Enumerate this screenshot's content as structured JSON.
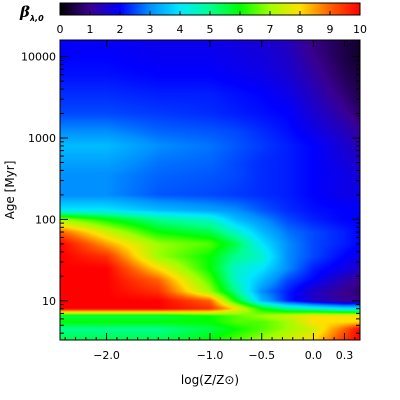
{
  "chart_data": {
    "type": "heatmap",
    "colorbar": {
      "label_symbol": "β",
      "label_subscript": "λ,0",
      "min": 0,
      "max": 10,
      "ticks": [
        "0",
        "1",
        "2",
        "3",
        "4",
        "5",
        "6",
        "7",
        "8",
        "9",
        "10"
      ]
    },
    "x_axis": {
      "label": "log(Z/Z⊙)",
      "min": -2.45,
      "max": 0.45,
      "ticks": [
        {
          "value": -2.0,
          "label": "−2.0"
        },
        {
          "value": -1.0,
          "label": "−1.0"
        },
        {
          "value": -0.5,
          "label": "−0.5"
        },
        {
          "value": 0.0,
          "label": "0.0"
        },
        {
          "value": 0.3,
          "label": "0.3"
        }
      ]
    },
    "y_axis": {
      "label": "Age [Myr]",
      "scale": "log",
      "min": 3.3,
      "max": 16000,
      "ticks": [
        {
          "value": 10,
          "label": "10"
        },
        {
          "value": 100,
          "label": "100"
        },
        {
          "value": 1000,
          "label": "1000"
        },
        {
          "value": 10000,
          "label": "10000"
        }
      ]
    },
    "value_grid": {
      "x": [
        -2.45,
        -2.0,
        -1.5,
        -1.0,
        -0.75,
        -0.5,
        -0.25,
        0.0,
        0.3,
        0.45
      ],
      "y": [
        3.3,
        4.5,
        5.5,
        6.5,
        8,
        10,
        13,
        18,
        25,
        35,
        50,
        70,
        100,
        130,
        200,
        350,
        500,
        800,
        1200,
        2000,
        3500,
        6000,
        10000,
        16000
      ],
      "z": [
        [
          5.5,
          5.5,
          5.5,
          6.0,
          6.5,
          7.0,
          7.5,
          8.0,
          9.5,
          10.0
        ],
        [
          5.0,
          5.0,
          5.0,
          5.5,
          6.0,
          6.5,
          7.0,
          7.5,
          9.0,
          10.0
        ],
        [
          6.0,
          6.0,
          6.0,
          6.0,
          6.5,
          6.5,
          7.0,
          8.0,
          8.0,
          8.0
        ],
        [
          5.5,
          5.5,
          5.5,
          6.0,
          6.5,
          7.0,
          7.5,
          8.0,
          8.0,
          8.0
        ],
        [
          10.0,
          10.0,
          10.0,
          9.5,
          8.0,
          6.0,
          5.0,
          4.5,
          4.0,
          4.0
        ],
        [
          10.0,
          10.0,
          10.0,
          9.0,
          6.0,
          3.5,
          2.2,
          1.5,
          1.0,
          1.0
        ],
        [
          10.0,
          10.0,
          9.5,
          7.0,
          5.0,
          3.0,
          2.2,
          1.5,
          1.0,
          0.8
        ],
        [
          10.0,
          10.0,
          9.0,
          6.5,
          4.5,
          3.5,
          2.5,
          2.0,
          1.3,
          1.0
        ],
        [
          10.0,
          10.0,
          8.0,
          6.0,
          4.5,
          4.0,
          3.0,
          2.2,
          1.8,
          1.5
        ],
        [
          10.0,
          9.5,
          7.0,
          6.0,
          5.0,
          4.5,
          3.0,
          2.5,
          2.0,
          1.8
        ],
        [
          10.0,
          8.5,
          7.0,
          6.5,
          5.5,
          4.0,
          3.0,
          2.5,
          2.2,
          2.0
        ],
        [
          9.0,
          7.5,
          6.0,
          5.5,
          4.5,
          3.5,
          2.8,
          2.5,
          2.2,
          2.0
        ],
        [
          7.0,
          6.0,
          5.0,
          4.5,
          3.5,
          3.0,
          2.5,
          2.2,
          2.0,
          2.0
        ],
        [
          4.0,
          4.0,
          3.5,
          3.2,
          3.0,
          2.6,
          2.3,
          2.1,
          2.0,
          2.0
        ],
        [
          3.0,
          3.0,
          2.6,
          2.5,
          2.4,
          2.3,
          2.2,
          2.0,
          1.8,
          1.8
        ],
        [
          3.0,
          3.0,
          2.7,
          2.6,
          2.5,
          2.3,
          2.2,
          2.0,
          1.8,
          1.6
        ],
        [
          3.2,
          3.2,
          2.8,
          2.7,
          2.5,
          2.3,
          2.2,
          2.0,
          1.7,
          1.5
        ],
        [
          3.5,
          3.5,
          3.0,
          2.8,
          2.6,
          2.4,
          2.2,
          2.0,
          1.6,
          1.3
        ],
        [
          3.0,
          3.0,
          2.7,
          2.6,
          2.5,
          2.3,
          2.1,
          1.8,
          1.4,
          1.1
        ],
        [
          2.5,
          2.5,
          2.4,
          2.3,
          2.2,
          2.1,
          2.0,
          1.6,
          1.1,
          0.7
        ],
        [
          2.3,
          2.3,
          2.2,
          2.2,
          2.1,
          2.0,
          1.8,
          1.4,
          0.8,
          0.5
        ],
        [
          2.1,
          2.1,
          2.0,
          2.0,
          1.9,
          1.8,
          1.6,
          1.2,
          0.6,
          0.4
        ],
        [
          2.0,
          2.0,
          1.9,
          1.9,
          1.8,
          1.7,
          1.5,
          1.0,
          0.5,
          0.3
        ],
        [
          1.9,
          1.9,
          1.8,
          1.8,
          1.7,
          1.6,
          1.4,
          0.9,
          0.5,
          0.3
        ]
      ]
    }
  }
}
